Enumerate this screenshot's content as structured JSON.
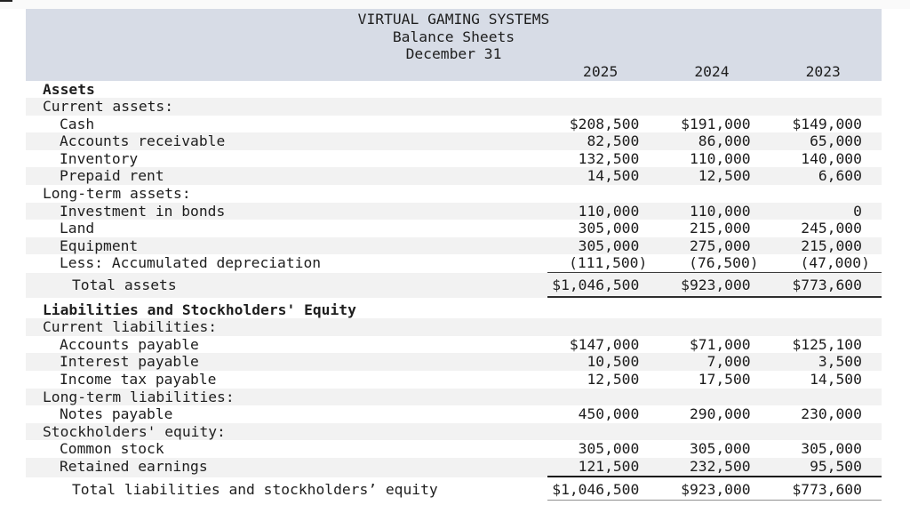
{
  "report": {
    "company": "VIRTUAL GAMING SYSTEMS",
    "statement": "Balance Sheets",
    "date_line": "December 31",
    "years": [
      "2025",
      "2024",
      "2023"
    ],
    "colors": {
      "header_bg": "#d7dce6",
      "stripe_bg": "#f2f2f2",
      "text": "#1e1e1e",
      "top_strip_bg": "#fafafa"
    },
    "rows": [
      {
        "label": "Assets",
        "indent": 0,
        "bold": true,
        "values": [
          "",
          "",
          ""
        ]
      },
      {
        "label": "Current assets:",
        "indent": 0,
        "values": [
          "",
          "",
          ""
        ]
      },
      {
        "label": "Cash",
        "indent": 1,
        "values": [
          "$208,500",
          "$191,000",
          "$149,000"
        ]
      },
      {
        "label": "Accounts receivable",
        "indent": 1,
        "values": [
          "82,500",
          "86,000",
          "65,000"
        ]
      },
      {
        "label": "Inventory",
        "indent": 1,
        "values": [
          "132,500",
          "110,000",
          "140,000"
        ]
      },
      {
        "label": "Prepaid rent",
        "indent": 1,
        "values": [
          "14,500",
          "12,500",
          "6,600"
        ]
      },
      {
        "label": "Long-term assets:",
        "indent": 0,
        "values": [
          "",
          "",
          ""
        ]
      },
      {
        "label": "Investment in bonds",
        "indent": 1,
        "values": [
          "110,000",
          "110,000",
          "0"
        ]
      },
      {
        "label": "Land",
        "indent": 1,
        "values": [
          "305,000",
          "215,000",
          "245,000"
        ]
      },
      {
        "label": "Equipment",
        "indent": 1,
        "values": [
          "305,000",
          "275,000",
          "215,000"
        ]
      },
      {
        "label": "Less: Accumulated depreciation",
        "indent": 1,
        "values": [
          "(111,500)",
          "(76,500)",
          "(47,000)"
        ],
        "rule": "thin"
      },
      {
        "label": "Total assets",
        "indent": 2,
        "total": true,
        "values": [
          "$1,046,500",
          "$923,000",
          "$773,600"
        ],
        "rule": "thick",
        "gap_after": true
      },
      {
        "label": "Liabilities and Stockholders' Equity",
        "indent": 0,
        "bold": true,
        "values": [
          "",
          "",
          ""
        ]
      },
      {
        "label": "Current liabilities:",
        "indent": 0,
        "values": [
          "",
          "",
          ""
        ]
      },
      {
        "label": "Accounts payable",
        "indent": 1,
        "values": [
          "$147,000",
          "$71,000",
          "$125,100"
        ]
      },
      {
        "label": "Interest payable",
        "indent": 1,
        "values": [
          "10,500",
          "7,000",
          "3,500"
        ]
      },
      {
        "label": "Income tax payable",
        "indent": 1,
        "values": [
          "12,500",
          "17,500",
          "14,500"
        ]
      },
      {
        "label": "Long-term liabilities:",
        "indent": 0,
        "values": [
          "",
          "",
          ""
        ]
      },
      {
        "label": "Notes payable",
        "indent": 1,
        "values": [
          "450,000",
          "290,000",
          "230,000"
        ]
      },
      {
        "label": "Stockholders' equity:",
        "indent": 0,
        "values": [
          "",
          "",
          ""
        ]
      },
      {
        "label": "Common stock",
        "indent": 1,
        "values": [
          "305,000",
          "305,000",
          "305,000"
        ]
      },
      {
        "label": "Retained earnings",
        "indent": 1,
        "values": [
          "121,500",
          "232,500",
          "95,500"
        ],
        "rule": "thick2"
      },
      {
        "label": "Total liabilities and stockholders’ equity",
        "indent": 2,
        "total": true,
        "values": [
          "$1,046,500",
          "$923,000",
          "$773,600"
        ],
        "rule": "thingray"
      }
    ]
  }
}
